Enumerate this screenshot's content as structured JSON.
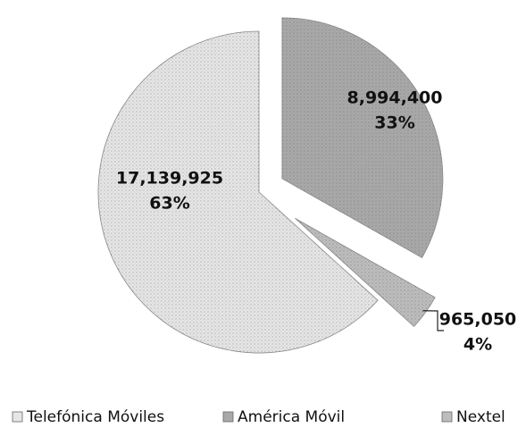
{
  "chart_data": {
    "type": "pie",
    "categories": [
      "Telefónica Móviles",
      "América Móvil",
      "Nextel"
    ],
    "values": [
      17139925,
      8994400,
      965050
    ],
    "value_labels": [
      "17,139,925",
      "8,994,400",
      "965,050"
    ],
    "percents": [
      63,
      33,
      4
    ],
    "percent_labels": [
      "63%",
      "33%",
      "4%"
    ],
    "colors": [
      "#e6e6e6",
      "#a9a9a9",
      "#bdbdbd"
    ],
    "legend": "bottom"
  }
}
